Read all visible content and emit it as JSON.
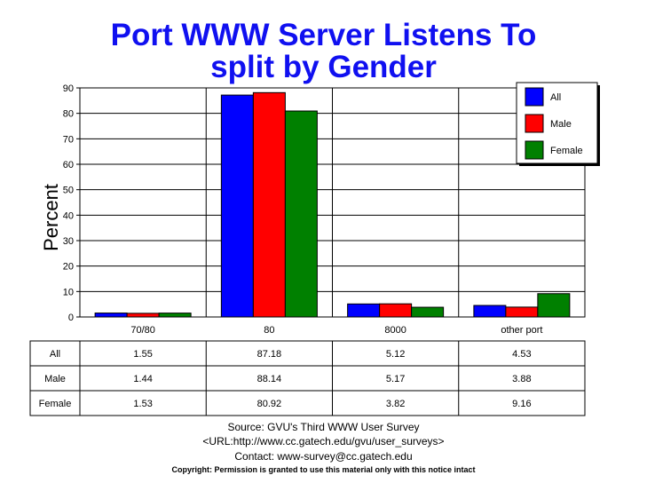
{
  "title_line1": "Port WWW Server Listens To",
  "title_line2": "split by Gender",
  "colors": {
    "All": "#0000ff",
    "Male": "#ff0000",
    "Female": "#008000",
    "title": "#1010f0"
  },
  "chart_data": {
    "type": "bar",
    "title": "Port WWW Server Listens To split by Gender",
    "categories": [
      "70/80",
      "80",
      "8000",
      "other port"
    ],
    "series": [
      {
        "name": "All",
        "values": [
          1.55,
          87.18,
          5.12,
          4.53
        ]
      },
      {
        "name": "Male",
        "values": [
          1.44,
          88.14,
          5.17,
          3.88
        ]
      },
      {
        "name": "Female",
        "values": [
          1.53,
          80.92,
          3.82,
          9.16
        ]
      }
    ],
    "value_labels": [
      [
        "1.55",
        "87.18",
        "5.12",
        "4.53"
      ],
      [
        "1.44",
        "88.14",
        "5.17",
        "3.88"
      ],
      [
        "1.53",
        "80.92",
        "3.82",
        "9.16"
      ]
    ],
    "xlabel": "",
    "ylabel": "Percent",
    "ylim": [
      0,
      90
    ],
    "yticks": [
      "0",
      "10",
      "20",
      "30",
      "40",
      "50",
      "60",
      "70",
      "80",
      "90"
    ],
    "grid": true,
    "legend": "top-right"
  },
  "footer": {
    "source": "Source: GVU's Third WWW User Survey",
    "url": "<URL:http://www.cc.gatech.edu/gvu/user_surveys>",
    "contact": "Contact: www-survey@cc.gatech.edu",
    "copyright": "Copyright: Permission is granted to use this material only with this notice intact"
  }
}
